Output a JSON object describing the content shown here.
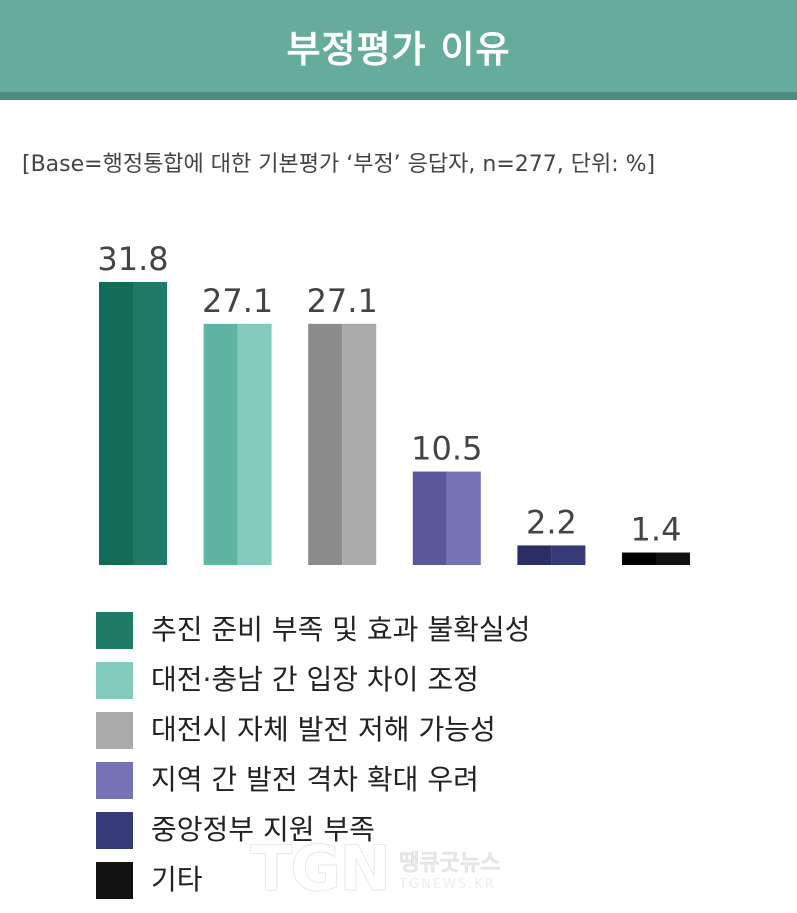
{
  "header": {
    "title": "부정평가 이유"
  },
  "subtitle": "[Base=행정통합에 대한 기본평가 ‘부정’ 응답자, n=277, 단위: %]",
  "chart_data": {
    "type": "bar",
    "categories": [
      "추진 준비 부족 및 효과 불확실성",
      "대전·충남 간 입장 차이 조정",
      "대전시 자체 발전 저해 가능성",
      "지역 간 발전 격차 확대 우려",
      "중앙정부 지원 부족",
      "기타"
    ],
    "values": [
      31.8,
      27.1,
      27.1,
      10.5,
      2.2,
      1.4
    ],
    "value_labels": [
      "31.8",
      "27.1",
      "27.1",
      "10.5",
      "2.2",
      "1.4"
    ],
    "colors": [
      "#1f7b68",
      "#82cbbd",
      "#aaaaaa",
      "#7672b5",
      "#363a76",
      "#111111"
    ],
    "dark_colors": [
      "#146b5a",
      "#5fb4a3",
      "#8c8c8c",
      "#5a579d",
      "#2a2e62",
      "#000000"
    ],
    "ylim": [
      0,
      31.8
    ],
    "grid": false,
    "legend_position": "bottom-left"
  },
  "watermark": {
    "logo": "TGN",
    "name": "땡큐굿뉴스",
    "url": "TGNEWS.KR"
  }
}
